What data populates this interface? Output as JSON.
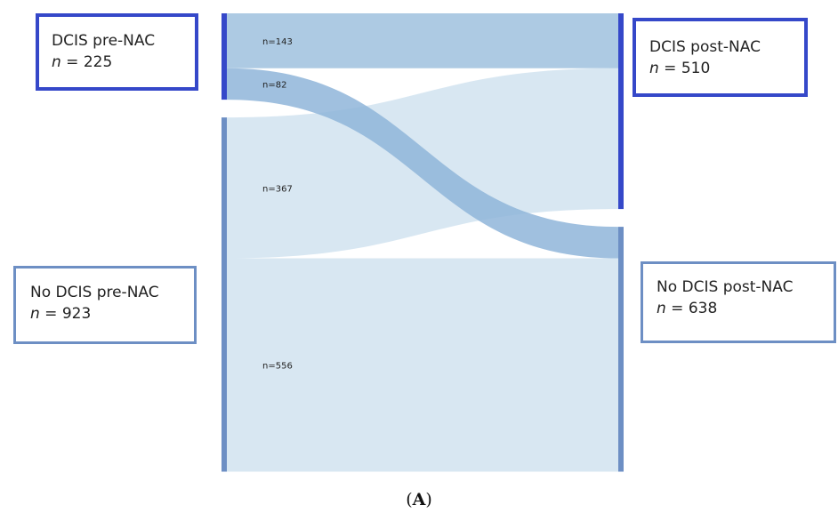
{
  "colors": {
    "dcis_bar": "#3548c9",
    "no_dcis_bar": "#6d8fc4",
    "band_dcis": "#a9c7e1",
    "band_cross": "#8fb5d9",
    "band_light": "#d4e4f1",
    "dcis_box_border": "#3548c9",
    "no_dcis_box_border": "#6d8fc4"
  },
  "nodes": {
    "dcis_pre": {
      "title": "DCIS pre-NAC",
      "n_symbol": "n",
      "n_value": " = 225"
    },
    "no_dcis_pre": {
      "title": "No DCIS pre-NAC",
      "n_symbol": "n",
      "n_value": " = 923"
    },
    "dcis_post": {
      "title": "DCIS post-NAC",
      "n_symbol": "n",
      "n_value": " = 510"
    },
    "no_dcis_post": {
      "title": "No DCIS post-NAC",
      "n_symbol": "n",
      "n_value": " = 638"
    }
  },
  "flows": [
    {
      "from": "DCIS pre-NAC",
      "to": "DCIS post-NAC",
      "value": 143,
      "label": "n=143"
    },
    {
      "from": "DCIS pre-NAC",
      "to": "No DCIS post-NAC",
      "value": 82,
      "label": "n=82"
    },
    {
      "from": "No DCIS pre-NAC",
      "to": "DCIS post-NAC",
      "value": 367,
      "label": "n=367"
    },
    {
      "from": "No DCIS pre-NAC",
      "to": "No DCIS post-NAC",
      "value": 556,
      "label": "n=556"
    }
  ],
  "caption": {
    "open": "(",
    "letter": "A",
    "close": ")"
  }
}
